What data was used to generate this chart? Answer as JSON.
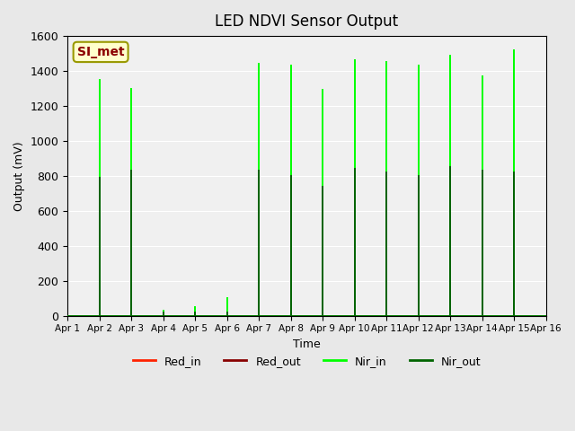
{
  "title": "LED NDVI Sensor Output",
  "xlabel": "Time",
  "ylabel": "Output (mV)",
  "ylim": [
    0,
    1600
  ],
  "xlim": [
    0,
    15
  ],
  "background_color": "#e8e8e8",
  "plot_bg_color": "#f0f0f0",
  "xtick_labels": [
    "Apr 1",
    "Apr 2",
    "Apr 3",
    "Apr 4",
    "Apr 5",
    "Apr 6",
    "Apr 7",
    "Apr 8",
    "Apr 9",
    "Apr 10",
    "Apr 11",
    "Apr 12",
    "Apr 13",
    "Apr 14",
    "Apr 15",
    "Apr 16"
  ],
  "ytick_labels": [
    0,
    200,
    400,
    600,
    800,
    1000,
    1200,
    1400,
    1600
  ],
  "legend_entries": [
    "Red_in",
    "Red_out",
    "Nir_in",
    "Nir_out"
  ],
  "legend_colors": [
    "#ff2200",
    "#880000",
    "#00ff00",
    "#006400"
  ],
  "annotation_text": "SI_met",
  "annotation_color": "#8b0000",
  "annotation_bg": "#ffffcc",
  "line_colors": {
    "Red_in": "#ff2200",
    "Red_out": "#880000",
    "Nir_in": "#00ff00",
    "Nir_out": "#006400"
  },
  "x_Red_in": [
    0,
    1,
    1,
    1,
    2,
    2,
    2,
    6,
    6,
    6,
    7,
    7,
    7,
    8,
    8,
    8,
    9,
    9,
    9,
    10,
    10,
    10,
    11,
    11,
    11,
    12,
    12,
    12,
    13,
    13,
    13,
    14,
    14,
    14,
    15
  ],
  "y_Red_in": [
    0,
    0,
    630,
    0,
    0,
    240,
    0,
    0,
    610,
    0,
    0,
    580,
    0,
    0,
    540,
    0,
    0,
    620,
    0,
    0,
    630,
    0,
    0,
    600,
    0,
    0,
    630,
    0,
    0,
    560,
    0,
    0,
    590,
    0,
    0
  ],
  "x_Red_out": [
    0,
    1,
    1,
    1,
    2,
    2,
    2,
    7,
    7,
    7,
    8,
    8,
    8,
    9,
    9,
    9,
    10,
    10,
    10,
    11,
    11,
    11,
    12,
    12,
    12,
    13,
    13,
    13,
    14,
    14,
    14,
    15
  ],
  "y_Red_out": [
    0,
    0,
    790,
    0,
    0,
    530,
    0,
    0,
    820,
    0,
    0,
    800,
    0,
    0,
    820,
    0,
    0,
    840,
    0,
    0,
    810,
    0,
    0,
    840,
    0,
    0,
    820,
    0,
    0,
    820,
    0,
    0
  ],
  "x_Nir_in": [
    0,
    1,
    1,
    1,
    2,
    2,
    2,
    3,
    3,
    3,
    4,
    4,
    4,
    5,
    5,
    5,
    6,
    6,
    6,
    7,
    7,
    7,
    8,
    8,
    8,
    9,
    9,
    9,
    10,
    10,
    10,
    11,
    11,
    11,
    12,
    12,
    12,
    13,
    13,
    13,
    14,
    14,
    14,
    15
  ],
  "y_Nir_in": [
    0,
    0,
    1350,
    0,
    0,
    1300,
    0,
    0,
    30,
    0,
    0,
    50,
    0,
    0,
    100,
    0,
    0,
    1440,
    0,
    0,
    1430,
    0,
    0,
    1290,
    0,
    0,
    1460,
    0,
    0,
    1450,
    0,
    0,
    1430,
    0,
    0,
    1490,
    0,
    0,
    1370,
    0,
    0,
    1520,
    0,
    0
  ],
  "x_Nir_out": [
    0,
    1,
    1,
    1,
    2,
    2,
    2,
    3,
    3,
    3,
    4,
    4,
    4,
    5,
    5,
    5,
    6,
    6,
    6,
    7,
    7,
    7,
    8,
    8,
    8,
    9,
    9,
    9,
    10,
    10,
    10,
    11,
    11,
    11,
    12,
    12,
    12,
    13,
    13,
    13,
    14,
    14,
    14,
    15
  ],
  "y_Nir_out": [
    0,
    0,
    790,
    0,
    0,
    830,
    0,
    0,
    20,
    0,
    0,
    20,
    0,
    0,
    20,
    0,
    0,
    830,
    0,
    0,
    800,
    0,
    0,
    740,
    0,
    0,
    840,
    0,
    0,
    820,
    0,
    0,
    800,
    0,
    0,
    850,
    0,
    0,
    830,
    0,
    0,
    820,
    0,
    0
  ]
}
